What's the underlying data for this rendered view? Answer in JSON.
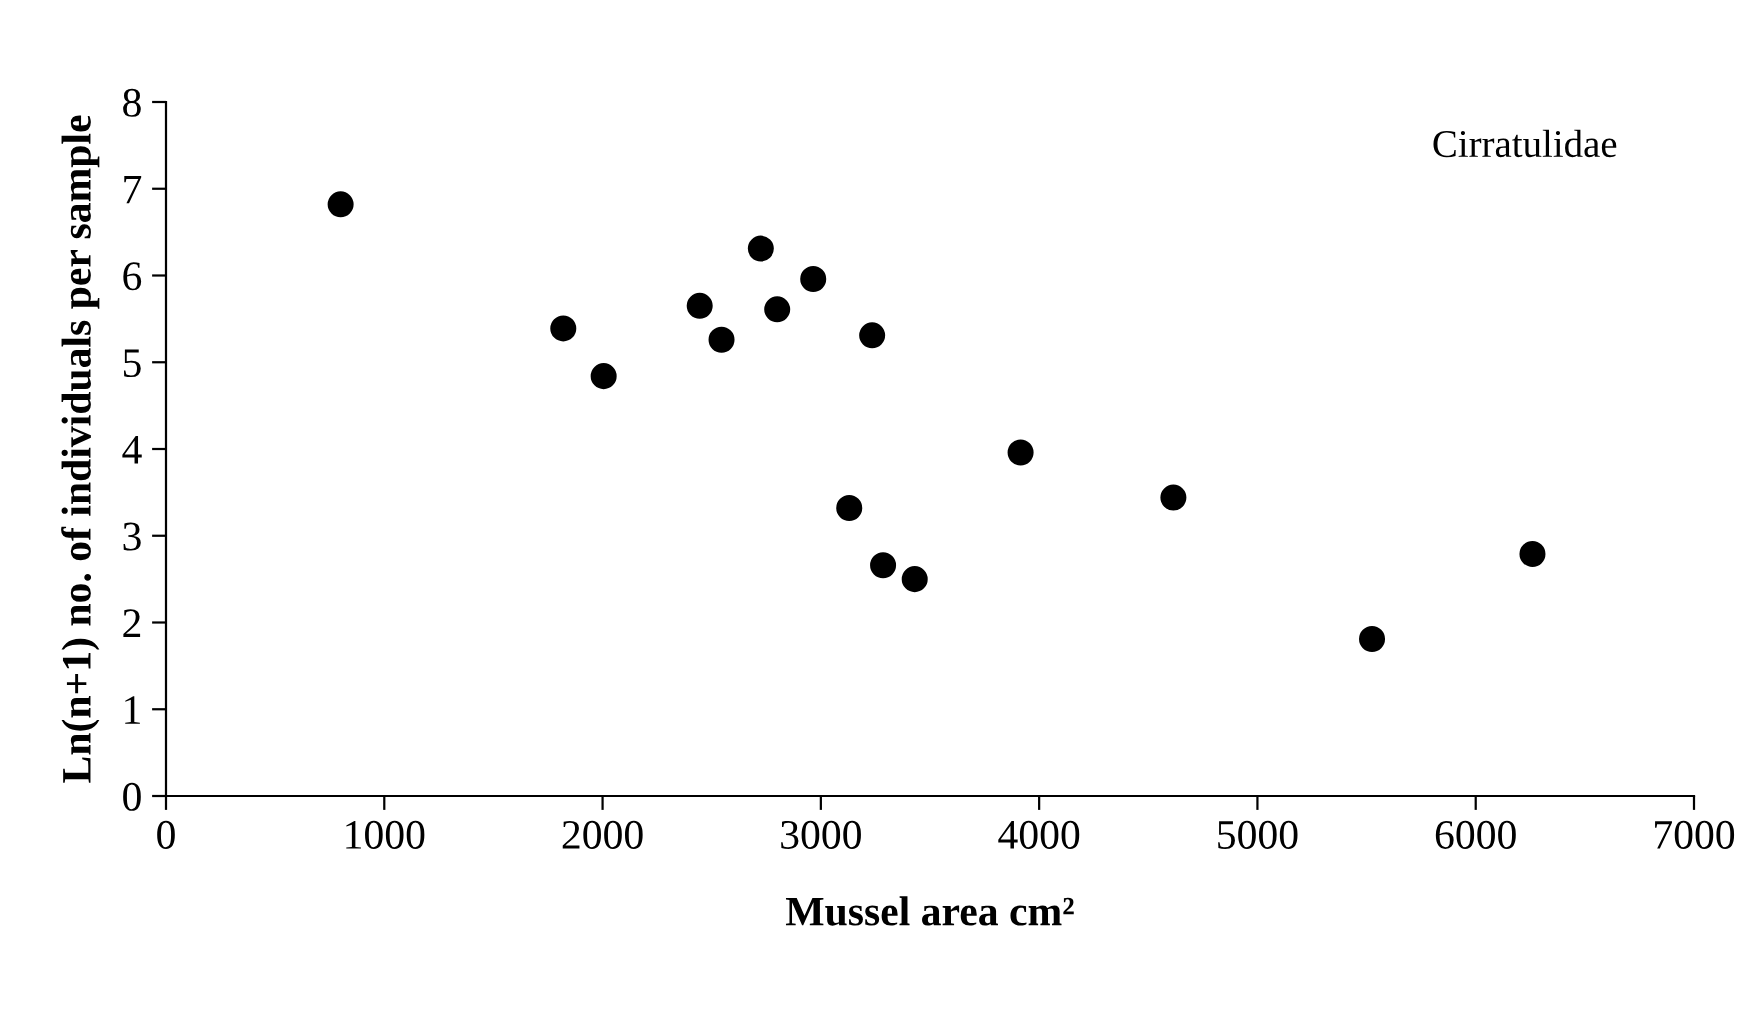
{
  "chart_data": {
    "type": "scatter",
    "xlabel": "Mussel area cm²",
    "ylabel": "Ln(n+1) no. of individuals per sample",
    "annotations": [
      "Cirratulidae"
    ],
    "series": [
      {
        "color": "#000000",
        "x": [
          800,
          1820,
          2005,
          2445,
          2545,
          2725,
          2800,
          2965,
          3235,
          3130,
          3285,
          3430,
          3915,
          4615,
          5525,
          6260
        ],
        "values": [
          6.82,
          5.39,
          4.84,
          5.65,
          5.26,
          6.31,
          5.61,
          5.96,
          5.31,
          3.32,
          2.66,
          2.5,
          3.96,
          3.44,
          1.81,
          2.79
        ]
      }
    ],
    "xlim": [
      0,
      7000
    ],
    "xticks": [
      0,
      1000,
      2000,
      3000,
      4000,
      5000,
      6000,
      7000
    ],
    "ylim": [
      0,
      8
    ],
    "yticks": [
      0,
      1,
      2,
      3,
      4,
      5,
      6,
      7,
      8
    ],
    "grid": false,
    "legend": false,
    "marker": "circle"
  }
}
